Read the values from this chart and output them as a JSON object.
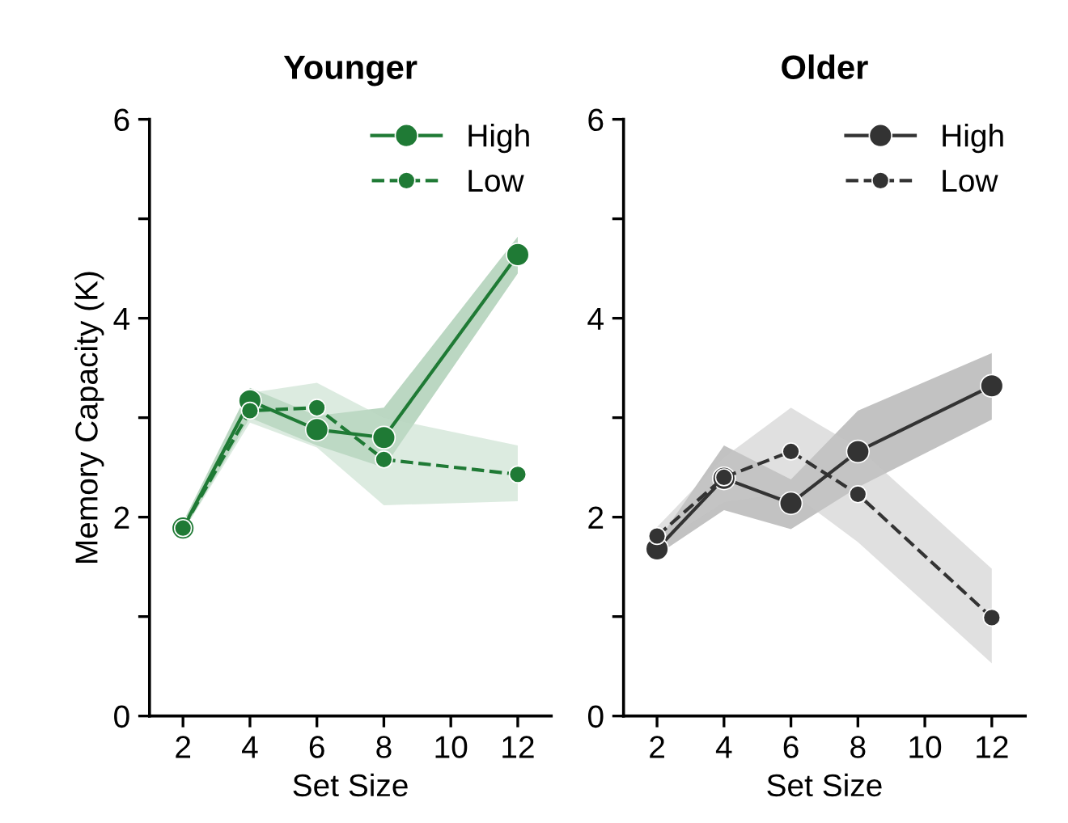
{
  "chart_data": [
    {
      "type": "line",
      "title": "Younger",
      "xlabel": "Set Size",
      "ylabel": "Memory Capacity (K)",
      "x": [
        2,
        4,
        6,
        8,
        12
      ],
      "xlim": [
        1,
        13
      ],
      "xticks": [
        2,
        4,
        6,
        8,
        10,
        12
      ],
      "ylim": [
        0,
        6
      ],
      "yticks": [
        0,
        {
          "value": 1,
          "label": null
        },
        2,
        {
          "value": 3,
          "label": null
        },
        4,
        {
          "value": 5,
          "label": null
        },
        6
      ],
      "marker": "circle",
      "legend": "top right",
      "grid": false,
      "series": [
        {
          "name": "High",
          "color": "#1f7a35",
          "line_style": "solid",
          "values": [
            1.89,
            3.17,
            2.88,
            2.8,
            4.64
          ],
          "lower": [
            1.85,
            3.0,
            2.72,
            2.5,
            4.45
          ],
          "upper": [
            1.95,
            3.3,
            3.02,
            3.1,
            4.82
          ]
        },
        {
          "name": "Low",
          "color": "#1f7a35",
          "line_style": "dashed",
          "values": [
            1.89,
            3.07,
            3.1,
            2.58,
            2.43
          ],
          "lower": [
            1.85,
            2.95,
            2.7,
            2.12,
            2.16
          ],
          "upper": [
            1.95,
            3.25,
            3.35,
            3.0,
            2.72
          ]
        }
      ]
    },
    {
      "type": "line",
      "title": "Older",
      "xlabel": "Set Size",
      "x": [
        2,
        4,
        6,
        8,
        12
      ],
      "xlim": [
        1,
        13
      ],
      "xticks": [
        2,
        4,
        6,
        8,
        10,
        12
      ],
      "ylim": [
        0,
        6
      ],
      "yticks": [
        0,
        {
          "value": 1,
          "label": null
        },
        2,
        {
          "value": 3,
          "label": null
        },
        4,
        {
          "value": 5,
          "label": null
        },
        6
      ],
      "marker": "circle",
      "legend": "top right",
      "grid": false,
      "series": [
        {
          "name": "High",
          "color": "#333333",
          "line_style": "solid",
          "values": [
            1.68,
            2.39,
            2.14,
            2.66,
            3.32
          ],
          "lower": [
            1.62,
            2.07,
            1.88,
            2.3,
            2.98
          ],
          "upper": [
            1.75,
            2.72,
            2.38,
            3.07,
            3.65
          ]
        },
        {
          "name": "Low",
          "color": "#333333",
          "line_style": "dashed",
          "values": [
            1.81,
            2.4,
            2.66,
            2.23,
            0.99
          ],
          "lower": [
            1.72,
            2.15,
            2.25,
            1.75,
            0.53
          ],
          "upper": [
            1.9,
            2.6,
            3.1,
            2.7,
            1.48
          ]
        }
      ]
    }
  ]
}
